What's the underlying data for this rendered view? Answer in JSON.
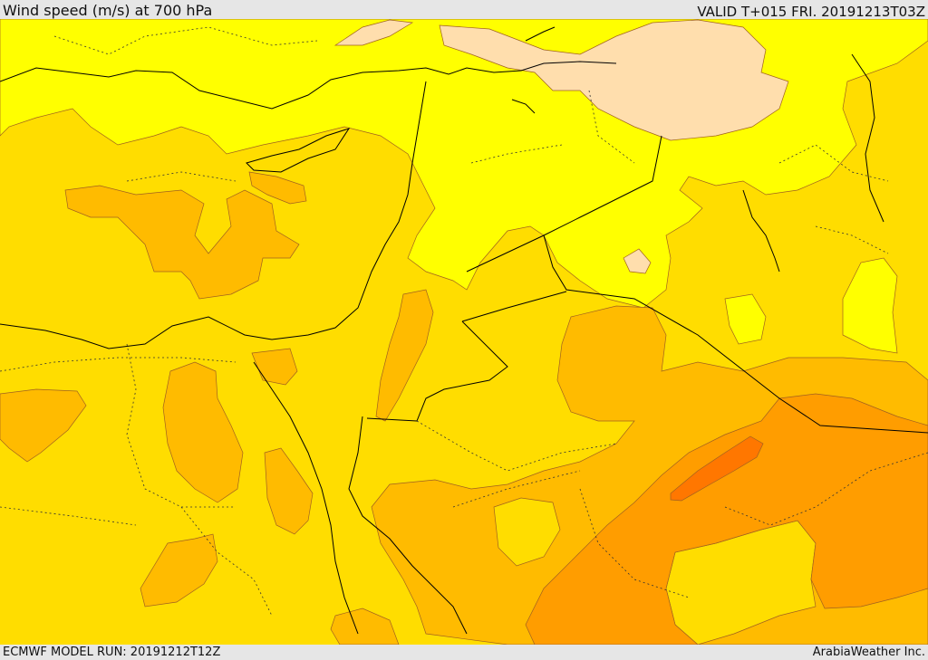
{
  "header": {
    "title": "Wind speed (m/s) at 700 hPa",
    "valid_label": "VALID T+015 FRI. 20191213T03Z"
  },
  "footer": {
    "model_run": "ECMWF MODEL RUN: 20191212T12Z",
    "credit": "ArabiaWeather Inc."
  },
  "map": {
    "field": "wind-speed",
    "colors": {
      "calm": "#ffdead",
      "light": "#ffff00",
      "moderate": "#ffdd00",
      "fresh": "#ffbb00",
      "strong": "#ff9d00",
      "stronger": "#ff7700",
      "contour": "#a06020",
      "coastline": "#000000"
    }
  }
}
